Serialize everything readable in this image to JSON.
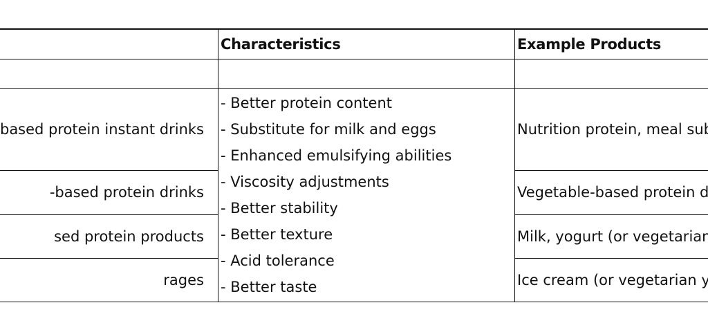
{
  "table": {
    "headers": [
      "",
      "Characteristics",
      "Example Products"
    ],
    "rows": [
      {
        "name": "-based protein instant drinks",
        "example": "Nutrition protein, meal sub powder"
      },
      {
        "name": "-based protein drinks",
        "example": "Vegetable-based protein d"
      },
      {
        "name": "sed protein products",
        "example": "Milk, yogurt (or vegetarian"
      },
      {
        "name": "rages",
        "example": "Ice cream (or vegetarian yo"
      }
    ],
    "characteristics": [
      "- Better protein content",
      "- Substitute for milk and eggs",
      "- Enhanced emulsifying abilities",
      "- Viscosity adjustments",
      "- Better stability",
      "- Better texture",
      "- Acid tolerance",
      "- Better taste"
    ]
  }
}
